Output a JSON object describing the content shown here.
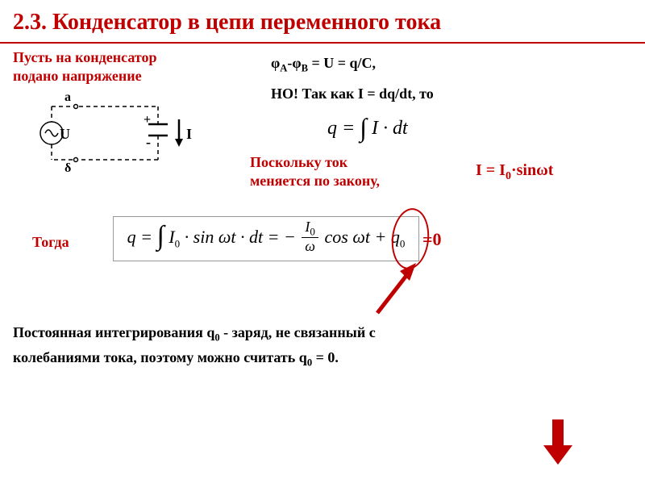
{
  "title": "2.3. Конденсатор в цепи переменного тока",
  "intro": "Пусть на конденсатор\nподано напряжение",
  "circuit": {
    "label_a": "а",
    "label_b": "δ",
    "label_u": "U",
    "label_i": "I",
    "plus": "+",
    "minus": "-",
    "line_color": "#000000",
    "dash_pattern": "5,4"
  },
  "eq1_html": "φ<sub>A</sub>-φ<sub>B</sub> = U = q/C,",
  "eq2": "НО! Так как I = dq/dt, то",
  "eq3_parts": {
    "lhs": "q =",
    "rhs": "I · dt"
  },
  "law_text": "Поскольку ток\nменяется по закону,",
  "eq_law_html": "I = I<sub>0</sub>·sinωt",
  "then_label": "Тогда",
  "eq_box": {
    "lhs": "q =",
    "mid1": "I",
    "mid1_sub": "0",
    "mid1_rest": " · sin ωt · dt = −",
    "frac_num_html": "I<sub>0</sub>",
    "frac_den": "ω",
    "rest": " cos ωt + q",
    "rest_sub": "0"
  },
  "zero_eq": "=0",
  "body_html": "Постоянная интегрирования q<sub>0</sub> - заряд, не связанный с<br>колебаниями тока, поэтому можно считать q<sub>0</sub> = 0.",
  "colors": {
    "accent": "#c00000",
    "text": "#000000",
    "box_border": "#999999",
    "background": "#ffffff"
  },
  "arrows": {
    "pointer_color": "#c00000",
    "down_fill": "#c00000"
  }
}
